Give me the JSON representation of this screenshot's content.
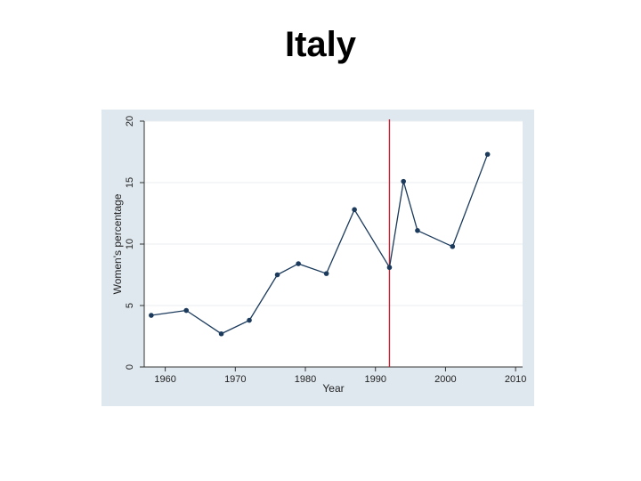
{
  "slide": {
    "title": "Italy"
  },
  "colors": {
    "panel_bg": "#dfe8ef",
    "plot_bg": "#ffffff",
    "grid": "#e9eef2",
    "line": "#1b3a5c",
    "marker": "#1b3a5c",
    "reference_line": "#c0283a",
    "axis": "#333333"
  },
  "chart_data": {
    "type": "line",
    "title": "",
    "xlabel": "Year",
    "ylabel": "Women's percentage",
    "xlim": [
      1957,
      2011
    ],
    "ylim": [
      0,
      20
    ],
    "x_ticks": [
      1960,
      1970,
      1980,
      1990,
      2000,
      2010
    ],
    "y_ticks": [
      0,
      5,
      10,
      15,
      20
    ],
    "grid": true,
    "reference_line_x": 1992,
    "series": [
      {
        "x": [
          1958,
          1963,
          1968,
          1972,
          1976,
          1979,
          1983,
          1987,
          1992,
          1994,
          1996,
          2001,
          2006
        ],
        "y": [
          4.2,
          4.6,
          2.7,
          3.8,
          7.5,
          8.4,
          7.6,
          12.8,
          8.1,
          15.1,
          11.1,
          9.8,
          17.3
        ]
      }
    ]
  }
}
